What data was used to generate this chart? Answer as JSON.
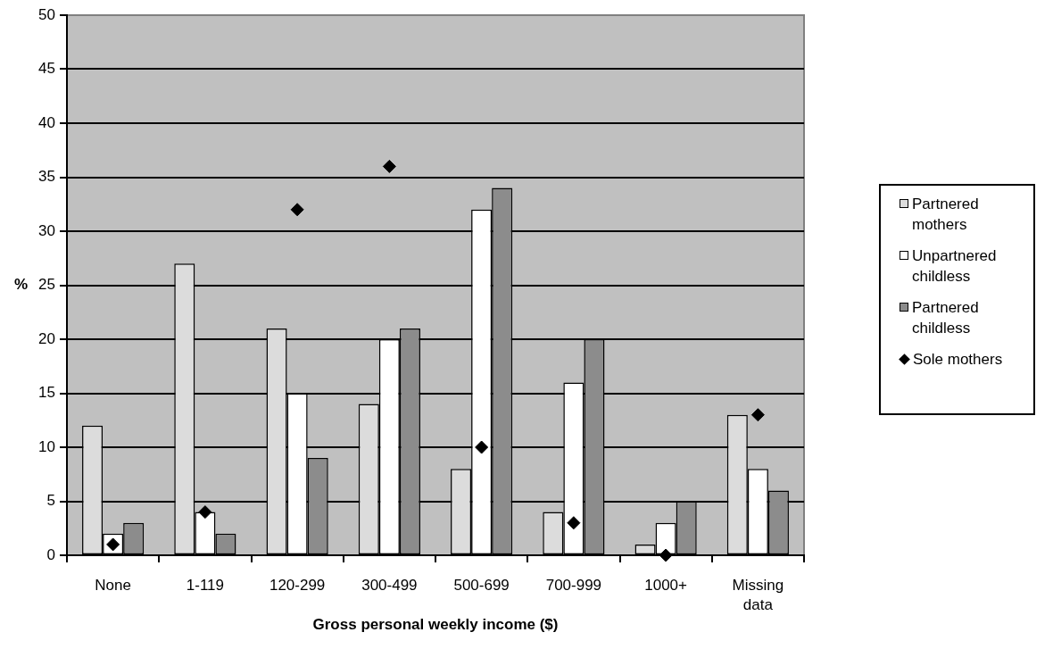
{
  "chart_data": {
    "type": "bar",
    "xlabel": "Gross personal weekly income ($)",
    "ylabel": "%",
    "categories": [
      "None",
      "1-119",
      "120-299",
      "300-499",
      "500-699",
      "700-999",
      "1000+",
      "Missing data"
    ],
    "series": [
      {
        "name": "Partnered mothers",
        "color": "#dcdcdc",
        "values": [
          12,
          27,
          21,
          14,
          8,
          4,
          1,
          13
        ]
      },
      {
        "name": "Unpartnered childless",
        "color": "#ffffff",
        "values": [
          2,
          4,
          15,
          20,
          32,
          16,
          3,
          8
        ]
      },
      {
        "name": "Partnered childless",
        "color": "#8c8c8c",
        "values": [
          3,
          2,
          9,
          21,
          34,
          20,
          5,
          6
        ]
      },
      {
        "name": "Sole mothers",
        "type": "scatter",
        "color": "#000000",
        "marker": "diamond",
        "x": [
          "None",
          "1-119",
          "120-299",
          "300-499",
          "500-699",
          "700-999",
          "1000+",
          "Missing data"
        ],
        "values": [
          1,
          4,
          32,
          36,
          10,
          3,
          0,
          13
        ]
      }
    ],
    "ylim": [
      0,
      50
    ],
    "yticks": [
      0,
      5,
      10,
      15,
      20,
      25,
      30,
      35,
      40,
      45,
      50
    ],
    "grid": "y",
    "legend": "right"
  }
}
